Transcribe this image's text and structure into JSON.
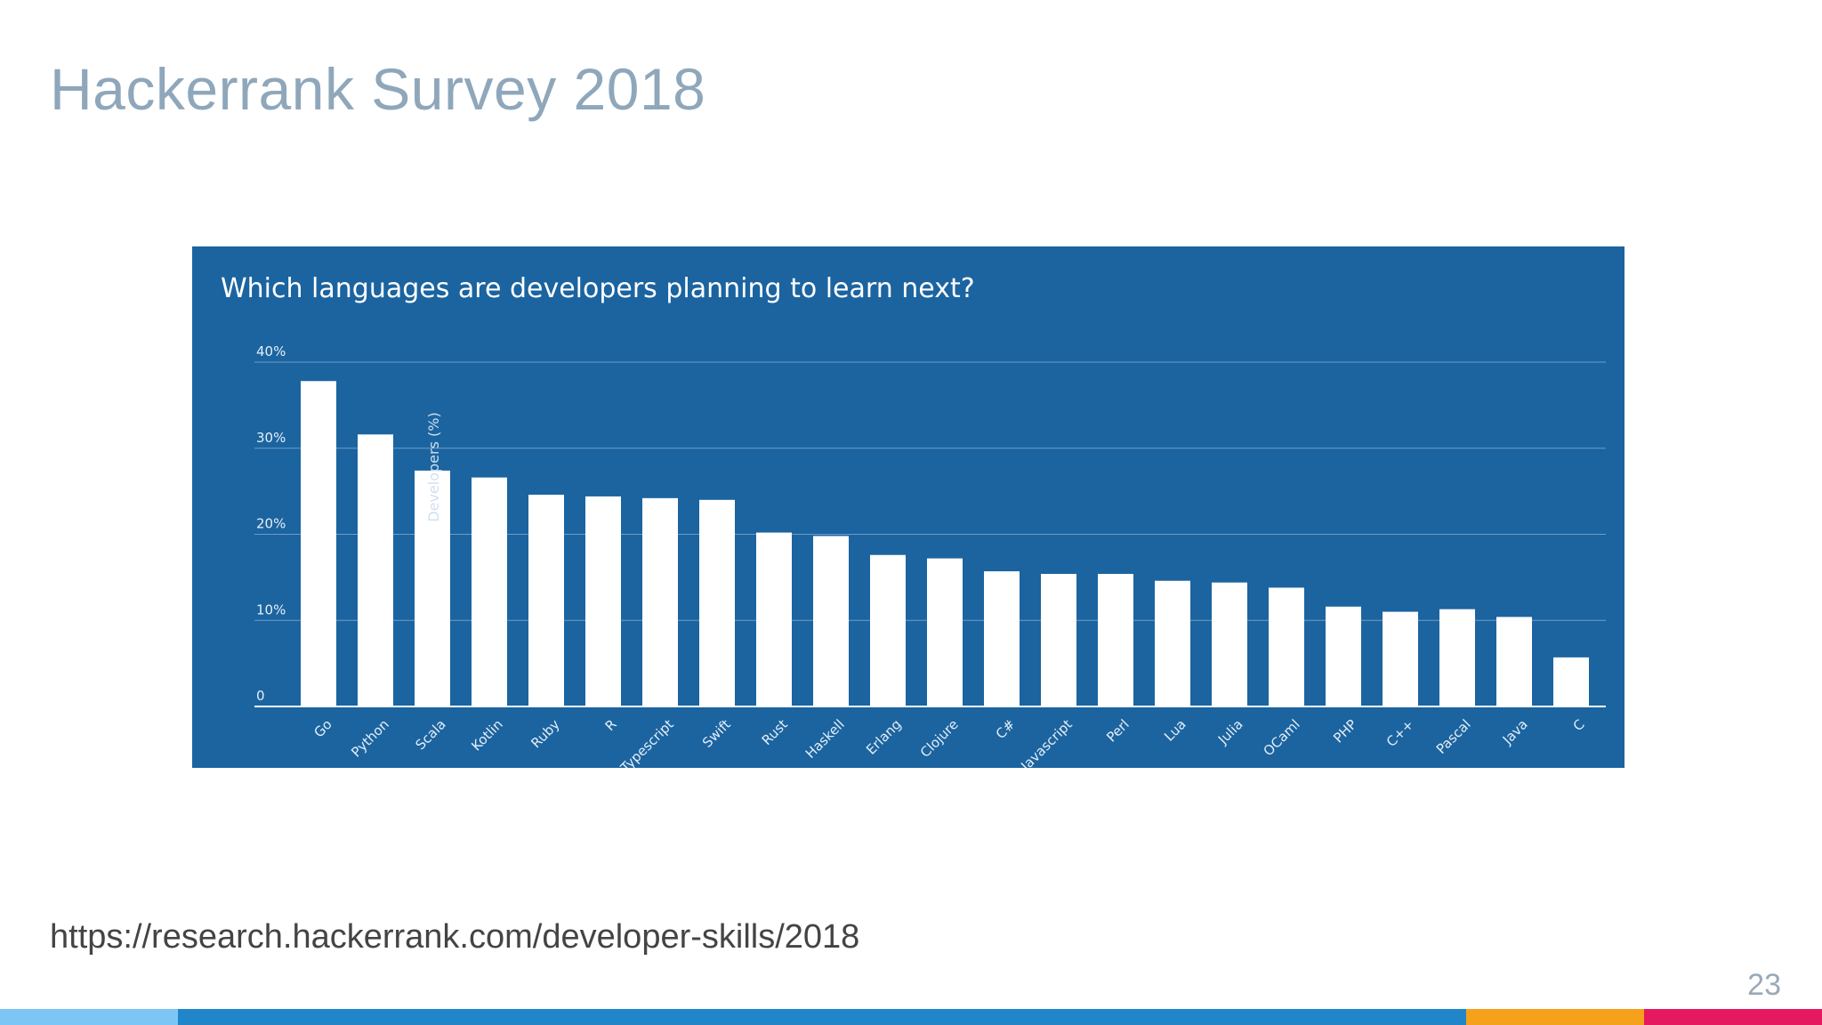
{
  "slide": {
    "title": "Hackerrank Survey 2018",
    "source_url": "https://research.hackerrank.com/developer-skills/2018",
    "page_number": "23"
  },
  "colors": {
    "panel_background": "#1b64a0",
    "bar": "#ffffff",
    "title": "#8fa7bb",
    "footer": [
      "#7cc6f5",
      "#2185c9",
      "#f6a11c",
      "#e5195f"
    ]
  },
  "chart_data": {
    "type": "bar",
    "title": "Which languages are developers planning to learn next?",
    "xlabel": "",
    "ylabel": "Developers (%)",
    "ylim": [
      0,
      40
    ],
    "yticks": [
      0,
      10,
      20,
      30,
      40
    ],
    "ytick_labels": [
      "0",
      "10%",
      "20%",
      "30%",
      "40%"
    ],
    "grid": true,
    "categories": [
      "Go",
      "Python",
      "Scala",
      "Kotlin",
      "Ruby",
      "R",
      "Typescript",
      "Swift",
      "Rust",
      "Haskell",
      "Erlang",
      "Clojure",
      "C#",
      "Javascript",
      "Perl",
      "Lua",
      "Julia",
      "OCaml",
      "PHP",
      "C++",
      "Pascal",
      "Java",
      "C"
    ],
    "values": [
      37.8,
      31.6,
      27.4,
      26.6,
      24.6,
      24.4,
      24.2,
      24.0,
      20.2,
      19.8,
      17.6,
      17.2,
      15.7,
      15.4,
      15.4,
      14.6,
      14.4,
      13.8,
      11.6,
      11.0,
      11.3,
      10.4,
      5.7
    ]
  }
}
